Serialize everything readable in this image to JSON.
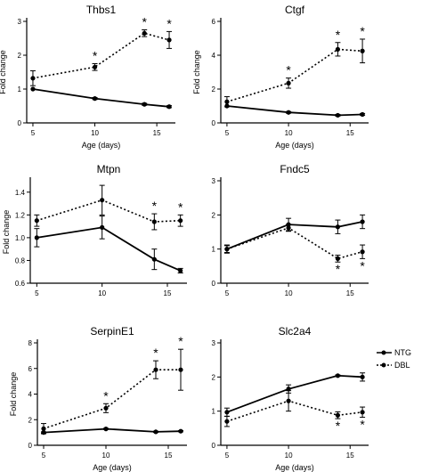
{
  "legend": {
    "placement": "right-middle",
    "items": [
      {
        "name": "NTG",
        "style": "solid",
        "marker": "filled-circle"
      },
      {
        "name": "DBL",
        "style": "dotted",
        "marker": "filled-circle"
      }
    ]
  },
  "colors": {
    "line": "#000000",
    "background": "#ffffff"
  },
  "chart_data": [
    {
      "type": "line",
      "title": "Thbs1",
      "xlabel": "Age (days)",
      "ylabel": "Fold change",
      "xlim": [
        4.5,
        16.5
      ],
      "ylim": [
        0,
        3
      ],
      "xticks": [
        5,
        10,
        15
      ],
      "yticks": [
        0,
        1,
        2,
        3
      ],
      "ytick_labels": [
        "0",
        "1",
        "2",
        "3"
      ],
      "series": [
        {
          "name": "NTG",
          "x": [
            5,
            10,
            14,
            16
          ],
          "y": [
            1.0,
            0.72,
            0.55,
            0.48
          ],
          "err": [
            0,
            0.03,
            0.03,
            0.03
          ],
          "sig": [
            false,
            false,
            false,
            false
          ]
        },
        {
          "name": "DBL",
          "x": [
            5,
            10,
            14,
            16
          ],
          "y": [
            1.32,
            1.65,
            2.65,
            2.45
          ],
          "err": [
            0.22,
            0.1,
            0.1,
            0.25
          ],
          "sig": [
            false,
            true,
            true,
            true
          ]
        }
      ]
    },
    {
      "type": "line",
      "title": "Ctgf",
      "xlabel": "Age (days)",
      "ylabel": "Fold change",
      "xlim": [
        4.5,
        16.5
      ],
      "ylim": [
        0,
        6
      ],
      "xticks": [
        5,
        10,
        15
      ],
      "yticks": [
        0,
        2,
        4,
        6
      ],
      "ytick_labels": [
        "0",
        "2",
        "4",
        "6"
      ],
      "series": [
        {
          "name": "NTG",
          "x": [
            5,
            10,
            14,
            16
          ],
          "y": [
            1.0,
            0.62,
            0.45,
            0.5
          ],
          "err": [
            0,
            0.05,
            0.05,
            0.05
          ],
          "sig": [
            false,
            false,
            false,
            false
          ]
        },
        {
          "name": "DBL",
          "x": [
            5,
            10,
            14,
            16
          ],
          "y": [
            1.25,
            2.35,
            4.35,
            4.25
          ],
          "err": [
            0.3,
            0.3,
            0.4,
            0.7
          ],
          "sig": [
            false,
            true,
            true,
            true
          ]
        }
      ]
    },
    {
      "type": "line",
      "title": "Mtpn",
      "xlabel": "",
      "ylabel": "Fold change",
      "xlim": [
        4.5,
        16.5
      ],
      "ylim": [
        0.6,
        1.5
      ],
      "xticks": [
        5,
        10,
        15
      ],
      "yticks": [
        0.6,
        0.8,
        1.0,
        1.2,
        1.4
      ],
      "ytick_labels": [
        "0.6",
        "0.8",
        "1.0",
        "1.2",
        "1.4"
      ],
      "series": [
        {
          "name": "NTG",
          "x": [
            5,
            10,
            14,
            16
          ],
          "y": [
            1.0,
            1.09,
            0.81,
            0.71
          ],
          "err": [
            0.08,
            0.1,
            0.09,
            0.02
          ],
          "sig": [
            false,
            false,
            false,
            false
          ]
        },
        {
          "name": "DBL",
          "x": [
            5,
            10,
            14,
            16
          ],
          "y": [
            1.15,
            1.33,
            1.14,
            1.15
          ],
          "err": [
            0.05,
            0.13,
            0.07,
            0.05
          ],
          "sig": [
            false,
            false,
            true,
            true
          ]
        }
      ]
    },
    {
      "type": "line",
      "title": "Fndc5",
      "xlabel": "",
      "ylabel": "",
      "xlim": [
        4.5,
        16.5
      ],
      "ylim": [
        0,
        3
      ],
      "xticks": [
        5,
        10,
        15
      ],
      "yticks": [
        0,
        1,
        2,
        3
      ],
      "ytick_labels": [
        "0",
        "1",
        "2",
        "3"
      ],
      "series": [
        {
          "name": "NTG",
          "x": [
            5,
            10,
            14,
            16
          ],
          "y": [
            1.0,
            1.72,
            1.65,
            1.8
          ],
          "err": [
            0.12,
            0.18,
            0.2,
            0.2
          ],
          "sig": [
            false,
            false,
            false,
            false
          ]
        },
        {
          "name": "DBL",
          "x": [
            5,
            10,
            14,
            16
          ],
          "y": [
            1.0,
            1.62,
            0.72,
            0.92
          ],
          "err": [
            0.1,
            0.1,
            0.1,
            0.2
          ],
          "sig": [
            false,
            false,
            true,
            true
          ]
        }
      ]
    },
    {
      "type": "line",
      "title": "SerpinE1",
      "xlabel": "Age (days)",
      "ylabel": "Fold change",
      "xlim": [
        4.5,
        16.5
      ],
      "ylim": [
        0,
        8
      ],
      "xticks": [
        5,
        10,
        15
      ],
      "yticks": [
        0,
        2,
        4,
        6,
        8
      ],
      "ytick_labels": [
        "0",
        "2",
        "4",
        "6",
        "8"
      ],
      "series": [
        {
          "name": "NTG",
          "x": [
            5,
            10,
            14,
            16
          ],
          "y": [
            1.0,
            1.28,
            1.05,
            1.1
          ],
          "err": [
            0.05,
            0.05,
            0.05,
            0.05
          ],
          "sig": [
            false,
            false,
            false,
            false
          ]
        },
        {
          "name": "DBL",
          "x": [
            5,
            10,
            14,
            16
          ],
          "y": [
            1.3,
            2.9,
            5.9,
            5.9
          ],
          "err": [
            0.4,
            0.35,
            0.7,
            1.6
          ],
          "sig": [
            false,
            true,
            true,
            true
          ]
        }
      ]
    },
    {
      "type": "line",
      "title": "Slc2a4",
      "xlabel": "Age (days)",
      "ylabel": "",
      "xlim": [
        4.5,
        16.5
      ],
      "ylim": [
        0,
        3
      ],
      "xticks": [
        5,
        10,
        15
      ],
      "yticks": [
        0,
        1,
        2,
        3
      ],
      "ytick_labels": [
        "0",
        "1",
        "2",
        "3"
      ],
      "series": [
        {
          "name": "NTG",
          "x": [
            5,
            10,
            14,
            16
          ],
          "y": [
            0.97,
            1.65,
            2.04,
            2.0
          ],
          "err": [
            0.12,
            0.12,
            0.02,
            0.12
          ],
          "sig": [
            false,
            false,
            false,
            false
          ]
        },
        {
          "name": "DBL",
          "x": [
            5,
            10,
            14,
            16
          ],
          "y": [
            0.7,
            1.3,
            0.88,
            0.97
          ],
          "err": [
            0.15,
            0.3,
            0.1,
            0.15
          ],
          "sig": [
            false,
            false,
            true,
            true
          ]
        }
      ]
    }
  ]
}
